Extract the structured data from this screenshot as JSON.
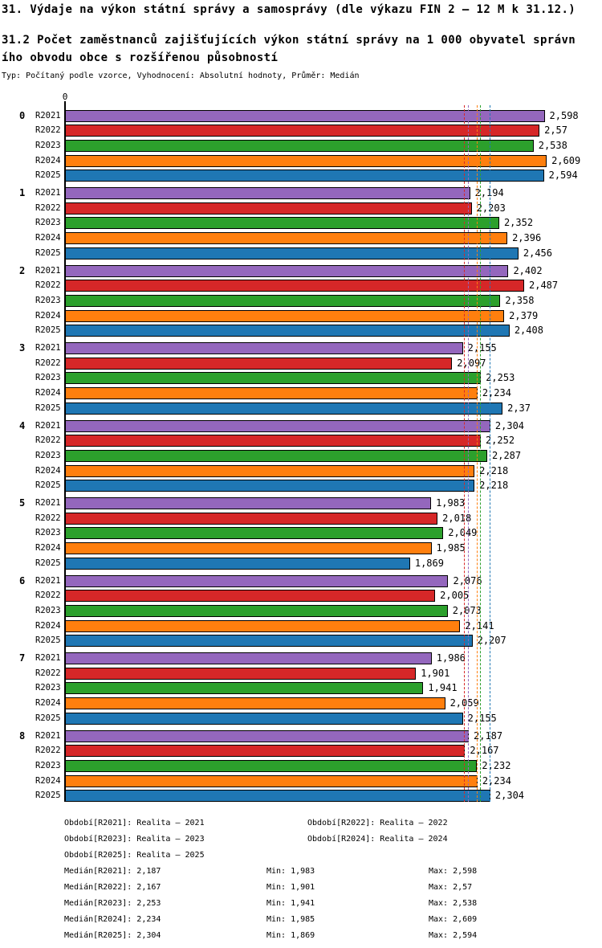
{
  "page": {
    "title": "31. Výdaje na výkon státní správy a samosprávy (dle výkazu FIN 2 – 12 M k 31.12.)",
    "subtitle_line1": "31.2 Počet zaměstnanců zajišťujících výkon státní správy na 1 000 obyvatel správn",
    "subtitle_line2": "ího obvodu obce s rozšířenou působností",
    "meta_line": "Typ: Počítaný podle vzorce, Vyhodnocení: Absolutní hodnoty, Průměr: Medián"
  },
  "chart_data": {
    "type": "bar",
    "orientation": "horizontal",
    "title": "31.2 Počet zaměstnanců zajišťujících výkon státní správy na 1 000 obyvatel správního obvodu obce s rozšířenou působností",
    "axis": {
      "origin_tick_label": "0",
      "value_min": 0,
      "grid": false
    },
    "categories": [
      "0",
      "1",
      "2",
      "3",
      "4",
      "5",
      "6",
      "7",
      "8"
    ],
    "series": [
      {
        "name": "R2021",
        "color": "#9467bd",
        "values": [
          2.598,
          2.194,
          2.402,
          2.155,
          2.304,
          1.983,
          2.076,
          1.986,
          2.187
        ],
        "labels": [
          "2,598",
          "2,194",
          "2,402",
          "2,155",
          "2,304",
          "1,983",
          "2,076",
          "1,986",
          "2,187"
        ],
        "median": 2.187,
        "median_label": "2,187",
        "min_label": "1,983",
        "max_label": "2,598"
      },
      {
        "name": "R2022",
        "color": "#d62728",
        "values": [
          2.57,
          2.203,
          2.487,
          2.097,
          2.252,
          2.018,
          2.005,
          1.901,
          2.167
        ],
        "labels": [
          "2,57",
          "2,203",
          "2,487",
          "2,097",
          "2,252",
          "2,018",
          "2,005",
          "1,901",
          "2,167"
        ],
        "median": 2.167,
        "median_label": "2,167",
        "min_label": "1,901",
        "max_label": "2,57"
      },
      {
        "name": "R2023",
        "color": "#2ca02c",
        "values": [
          2.538,
          2.352,
          2.358,
          2.253,
          2.287,
          2.049,
          2.073,
          1.941,
          2.232
        ],
        "labels": [
          "2,538",
          "2,352",
          "2,358",
          "2,253",
          "2,287",
          "2,049",
          "2,073",
          "1,941",
          "2,232"
        ],
        "median": 2.253,
        "median_label": "2,253",
        "min_label": "1,941",
        "max_label": "2,538"
      },
      {
        "name": "R2024",
        "color": "#ff7f0e",
        "values": [
          2.609,
          2.396,
          2.379,
          2.234,
          2.218,
          1.985,
          2.141,
          2.059,
          2.234
        ],
        "labels": [
          "2,609",
          "2,396",
          "2,379",
          "2,234",
          "2,218",
          "1,985",
          "2,141",
          "2,059",
          "2,234"
        ],
        "median": 2.234,
        "median_label": "2,234",
        "min_label": "1,985",
        "max_label": "2,609"
      },
      {
        "name": "R2025",
        "color": "#1f77b4",
        "values": [
          2.594,
          2.456,
          2.408,
          2.37,
          2.218,
          1.869,
          2.207,
          2.155,
          2.304
        ],
        "labels": [
          "2,594",
          "2,456",
          "2,408",
          "2,37",
          "2,218",
          "1,869",
          "2,207",
          "2,155",
          "2,304"
        ],
        "median": 2.304,
        "median_label": "2,304",
        "min_label": "1,869",
        "max_label": "2,594"
      }
    ],
    "legend": {
      "periods": [
        "Období[R2021]: Realita – 2021",
        "Období[R2022]: Realita – 2022",
        "Období[R2023]: Realita – 2023",
        "Období[R2024]: Realita – 2024",
        "Období[R2025]: Realita – 2025"
      ],
      "stats": [
        {
          "median": "Medián[R2021]: 2,187",
          "min": "Min: 1,983",
          "max": "Max: 2,598"
        },
        {
          "median": "Medián[R2022]: 2,167",
          "min": "Min: 1,901",
          "max": "Max: 2,57"
        },
        {
          "median": "Medián[R2023]: 2,253",
          "min": "Min: 1,941",
          "max": "Max: 2,538"
        },
        {
          "median": "Medián[R2024]: 2,234",
          "min": "Min: 1,985",
          "max": "Max: 2,609"
        },
        {
          "median": "Medián[R2025]: 2,304",
          "min": "Min: 1,869",
          "max": "Max: 2,594"
        }
      ]
    }
  }
}
